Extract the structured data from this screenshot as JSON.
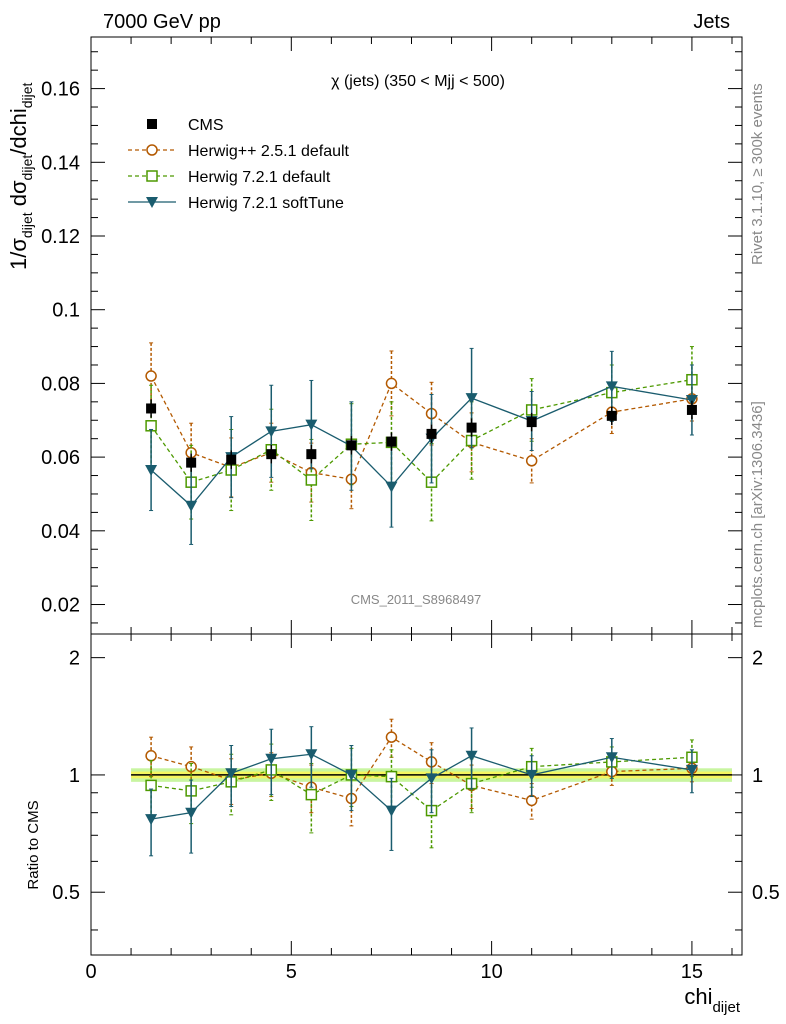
{
  "header": {
    "left": "7000 GeV pp",
    "right": "Jets"
  },
  "side": {
    "top_text": "Rivet 3.1.10, ≥ 300k events",
    "bottom_text": "mcplots.cern.ch [arXiv:1306.3436]"
  },
  "analysis_id": "CMS_2011_S8968497",
  "plot_title": "χ (jets) (350 < Mjj <  500)",
  "colors": {
    "cms": "#000000",
    "herwig251": "#b35900",
    "herwig721": "#4d9900",
    "softtune": "#1a5c6e",
    "band_inner": "#f5f560",
    "band_outer": "#c8f5a0"
  },
  "chart_data": [
    {
      "type": "scatter",
      "panel": "main",
      "title": "χ (jets) (350 < Mjj <  500)",
      "ylabel": "1/σdijet dσdijet/dchidijet",
      "ylim": [
        0.012,
        0.174
      ],
      "xlim": [
        0,
        16.25
      ],
      "x_ticks": [
        "0",
        "5",
        "10",
        "15"
      ],
      "y_ticks": [
        "0.02",
        "0.04",
        "0.06",
        "0.08",
        "0.1",
        "0.12",
        "0.14",
        "0.16"
      ],
      "legend_position": "top-left",
      "x": [
        1.5,
        2.5,
        3.5,
        4.5,
        5.5,
        6.5,
        7.5,
        8.5,
        9.5,
        11,
        13,
        15
      ],
      "series": [
        {
          "name": "CMS",
          "style": "data",
          "values": [
            0.0732,
            0.0585,
            0.0593,
            0.0608,
            0.0608,
            0.0632,
            0.0642,
            0.0663,
            0.068,
            0.0695,
            0.0712,
            0.0728
          ],
          "errors": [
            0.0025,
            0.0025,
            0.0025,
            0.0025,
            0.0025,
            0.0025,
            0.0025,
            0.0025,
            0.0025,
            0.0025,
            0.0025,
            0.0025
          ]
        },
        {
          "name": "Herwig++ 2.5.1 default",
          "style": "circle-dashed",
          "values": [
            0.082,
            0.0612,
            0.0572,
            0.0612,
            0.0558,
            0.054,
            0.08,
            0.0718,
            0.064,
            0.059,
            0.0722,
            0.0758
          ],
          "errors": [
            0.009,
            0.008,
            0.008,
            0.008,
            0.008,
            0.008,
            0.0088,
            0.0085,
            0.008,
            0.006,
            0.0058,
            0.006
          ]
        },
        {
          "name": "Herwig 7.2.1 default",
          "style": "square-dashed",
          "values": [
            0.0685,
            0.0532,
            0.0565,
            0.062,
            0.0538,
            0.0635,
            0.064,
            0.0532,
            0.0645,
            0.0728,
            0.0775,
            0.081
          ],
          "errors": [
            0.011,
            0.01,
            0.011,
            0.011,
            0.011,
            0.011,
            0.011,
            0.0105,
            0.0105,
            0.0085,
            0.0075,
            0.009
          ]
        },
        {
          "name": "Herwig 7.2.1 softTune",
          "style": "triangle-solid",
          "values": [
            0.0565,
            0.0468,
            0.06,
            0.067,
            0.0688,
            0.063,
            0.052,
            0.065,
            0.076,
            0.0698,
            0.0792,
            0.0755
          ],
          "errors": [
            0.011,
            0.0105,
            0.011,
            0.0125,
            0.012,
            0.012,
            0.011,
            0.012,
            0.0135,
            0.008,
            0.0095,
            0.0095
          ]
        }
      ]
    },
    {
      "type": "scatter",
      "panel": "ratio",
      "ylabel": "Ratio to CMS",
      "xlabel": "chidijet",
      "ylim": [
        0.345,
        2.3
      ],
      "log_y": true,
      "y_ticks": [
        "0.5",
        "1",
        "2"
      ],
      "x_ticks": [
        "0",
        "5",
        "10",
        "15"
      ],
      "x": [
        1.5,
        2.5,
        3.5,
        4.5,
        5.5,
        6.5,
        7.5,
        8.5,
        9.5,
        11,
        13,
        15
      ],
      "band": {
        "inner_halfwidth": 0.02,
        "outer_halfwidth": 0.04
      },
      "series": [
        {
          "name": "Herwig++ 2.5.1 default",
          "values": [
            1.12,
            1.05,
            0.97,
            1.01,
            0.93,
            0.87,
            1.25,
            1.08,
            0.94,
            0.86,
            1.02,
            1.04
          ],
          "errors": [
            0.13,
            0.13,
            0.13,
            0.13,
            0.13,
            0.13,
            0.14,
            0.13,
            0.12,
            0.09,
            0.08,
            0.08
          ]
        },
        {
          "name": "Herwig 7.2.1 default",
          "values": [
            0.94,
            0.91,
            0.96,
            1.03,
            0.89,
            1.0,
            0.99,
            0.81,
            0.95,
            1.05,
            1.08,
            1.11
          ],
          "errors": [
            0.15,
            0.16,
            0.17,
            0.17,
            0.18,
            0.17,
            0.17,
            0.16,
            0.15,
            0.12,
            0.1,
            0.12
          ]
        },
        {
          "name": "Herwig 7.2.1 softTune",
          "values": [
            0.77,
            0.8,
            1.01,
            1.1,
            1.13,
            1.0,
            0.81,
            0.98,
            1.12,
            1.0,
            1.11,
            1.03
          ],
          "errors": [
            0.15,
            0.17,
            0.18,
            0.21,
            0.2,
            0.19,
            0.17,
            0.18,
            0.2,
            0.12,
            0.13,
            0.13
          ]
        }
      ]
    }
  ]
}
